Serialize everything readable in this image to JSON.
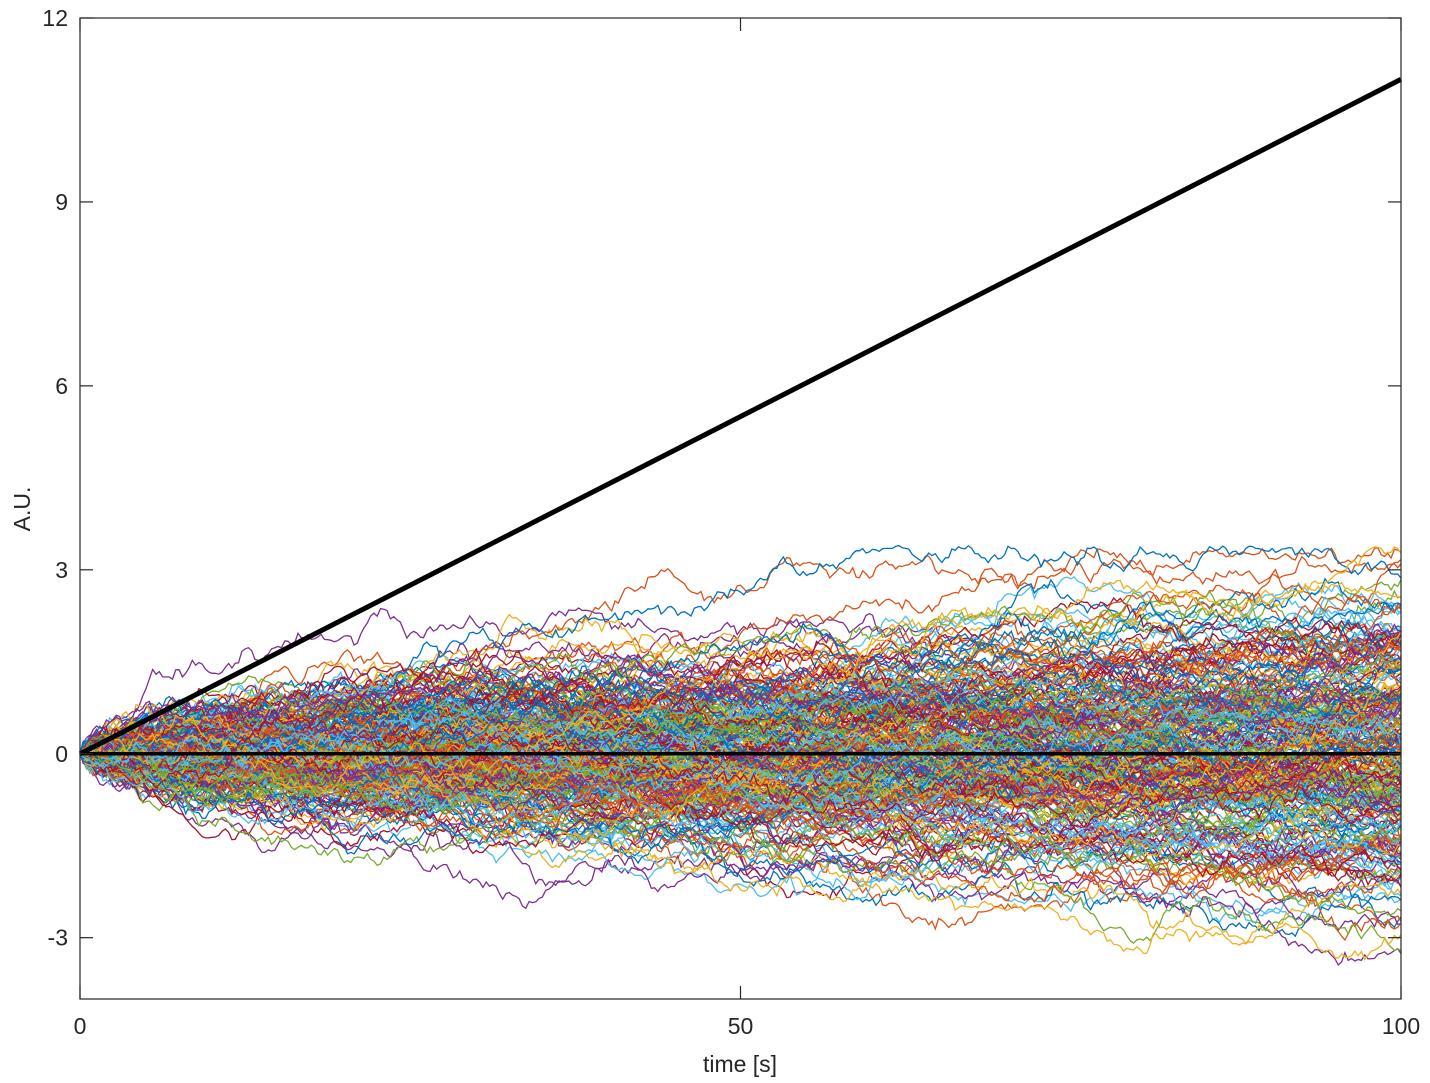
{
  "chart_data": {
    "type": "line",
    "title": "",
    "xlabel": "time [s]",
    "ylabel": "A.U.",
    "xlim": [
      0,
      100
    ],
    "ylim": [
      -4,
      12
    ],
    "xticks": [
      0,
      50,
      100
    ],
    "yticks": [
      -3,
      0,
      3,
      6,
      9,
      12
    ],
    "x_tick_labels": [
      "0",
      "50",
      "100"
    ],
    "y_tick_labels": [
      "-3",
      "0",
      "3",
      "6",
      "9",
      "12"
    ],
    "grid": false,
    "legend": "none",
    "series": [
      {
        "x": [
          0,
          100
        ],
        "y": [
          0,
          11
        ],
        "color": "#000000",
        "style": "thick"
      },
      {
        "x": [
          0,
          100
        ],
        "y": [
          0,
          0
        ],
        "color": "#000000",
        "style": "thick"
      }
    ],
    "random_walk_traces": {
      "description_count": 300,
      "start": [
        0,
        0
      ],
      "final_value_range": [
        -3.6,
        3.4
      ],
      "peak_max": 3.4,
      "trough_min": -3.6,
      "palette": [
        "#0072BD",
        "#D95319",
        "#EDB120",
        "#7E2F8E",
        "#77AC30",
        "#4DBEEE",
        "#A2142F"
      ]
    }
  }
}
